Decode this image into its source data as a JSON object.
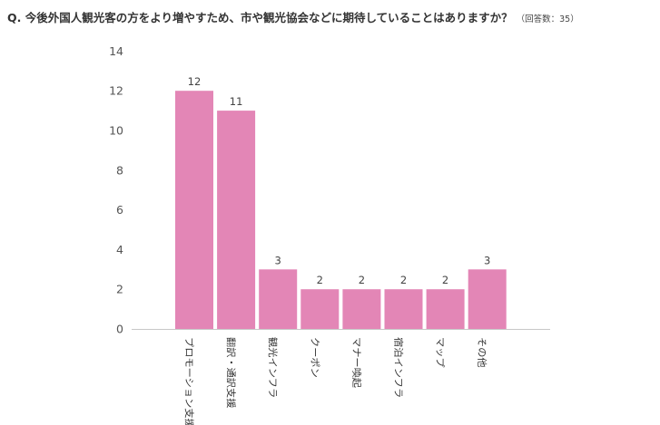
{
  "header": {
    "question": "Q. 今後外国人観光客の方をより増やすため、市や観光協会などに期待していることはありますか？",
    "respondents": "（回答数：35）"
  },
  "colors": {
    "bar": "#E386B6",
    "axis_text": "#555555",
    "baseline": "#c8c8c8"
  },
  "chart_data": {
    "type": "bar",
    "categories": [
      "プロモーション支援",
      "翻訳・通訳支援",
      "観光インフラ",
      "クーポン",
      "マナー喚起",
      "宿泊インフラ",
      "マップ",
      "その他"
    ],
    "values": [
      12,
      11,
      3,
      2,
      2,
      2,
      2,
      3
    ],
    "title": "",
    "xlabel": "",
    "ylabel": "",
    "ylim": [
      0,
      14
    ],
    "yticks": [
      0,
      2,
      4,
      6,
      8,
      10,
      12,
      14
    ],
    "grid": false,
    "data_labels": true,
    "legend": "none"
  }
}
